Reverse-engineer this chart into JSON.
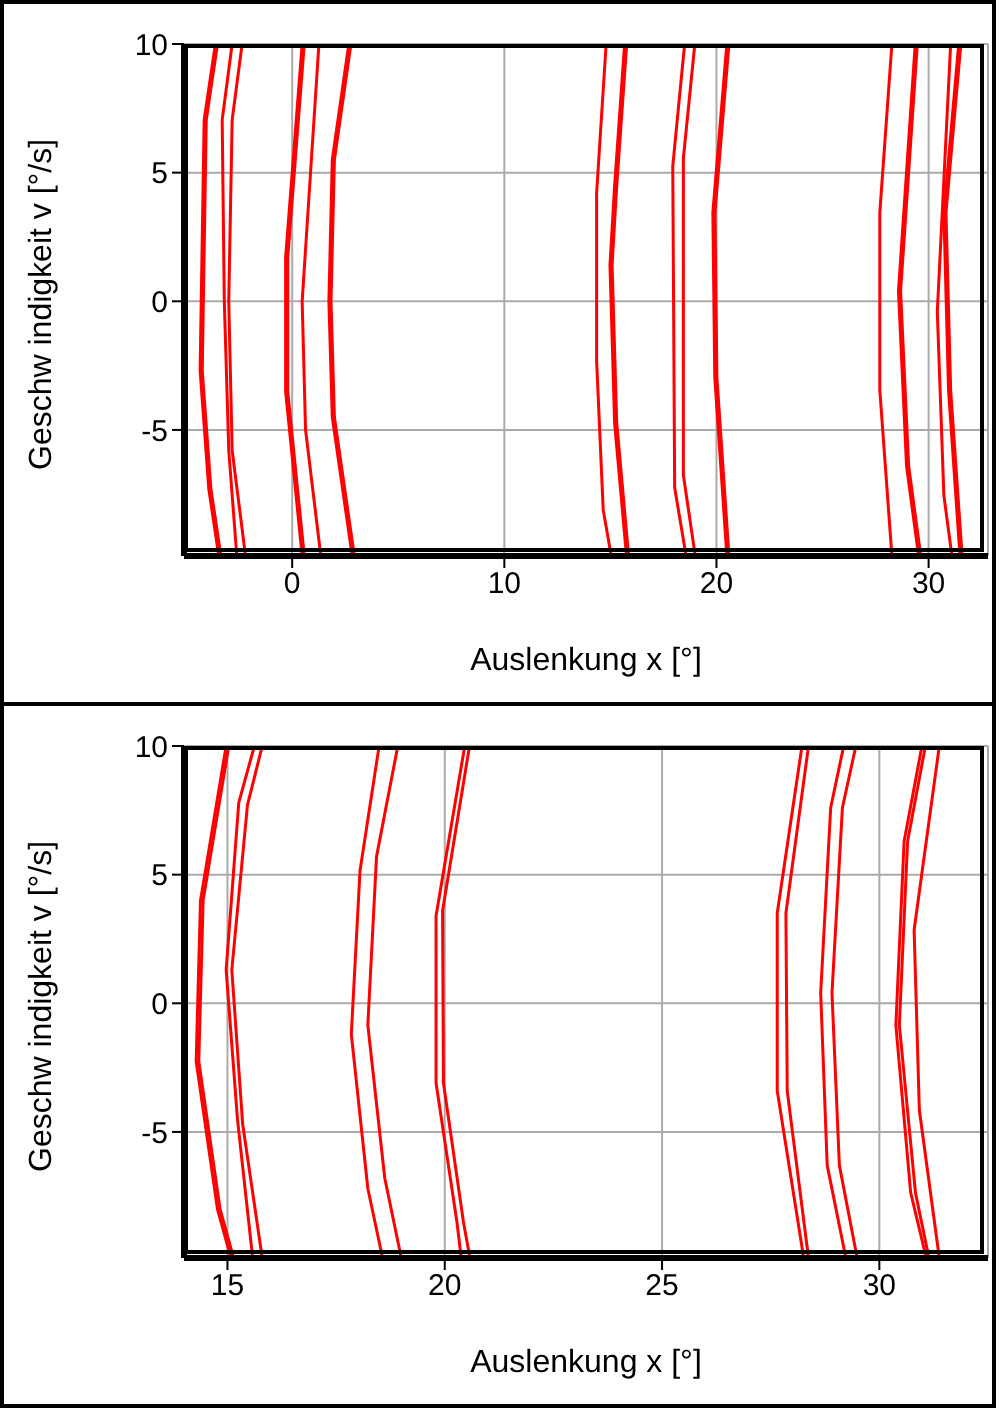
{
  "chart_data": [
    {
      "type": "line",
      "xlabel": "Auslenkung x [°]",
      "ylabel": "Geschw indigkeit v [°/s]",
      "xlim": [
        -5.1,
        32.8
      ],
      "ylim": [
        -9.9,
        10
      ],
      "xticks": [
        0,
        10,
        20,
        30
      ],
      "yticks": [
        -5,
        0,
        5,
        10
      ],
      "grid": true,
      "marker": "none",
      "line_style": "solid",
      "series": [
        {
          "color": "#ff0000",
          "x": [
            -3.62,
            -4.15,
            -4.34,
            -3.93,
            -3.46
          ],
          "values": [
            10,
            7.05,
            -2.7,
            -7.3,
            -9.9
          ]
        },
        {
          "color": "#ff0000",
          "x": [
            -3.52,
            -4.05,
            -4.24,
            -3.83,
            -3.36
          ],
          "values": [
            10,
            7.05,
            -2.7,
            -7.3,
            -9.9
          ]
        },
        {
          "color": "#ff0000",
          "x": [
            -2.83,
            -3.3,
            -3.2,
            -2.99,
            -2.61
          ],
          "values": [
            10,
            7.05,
            0,
            -5.8,
            -9.9
          ]
        },
        {
          "color": "#ff0000",
          "x": [
            -2.36,
            -2.83,
            -2.99,
            -2.83,
            -2.2
          ],
          "values": [
            10,
            7.05,
            0,
            -5.8,
            -9.9
          ]
        },
        {
          "color": "#ff0000",
          "x": [
            0.47,
            -0.31,
            -0.31,
            0.47
          ],
          "values": [
            10,
            1.7,
            -3.5,
            -9.9
          ]
        },
        {
          "color": "#ff0000",
          "x": [
            0.57,
            -0.21,
            -0.21,
            0.57
          ],
          "values": [
            10,
            1.7,
            -3.5,
            -9.9
          ]
        },
        {
          "color": "#ff0000",
          "x": [
            1.26,
            0.47,
            0.63,
            1.35
          ],
          "values": [
            10,
            0,
            -5,
            -9.9
          ]
        },
        {
          "color": "#ff0000",
          "x": [
            2.67,
            1.89,
            1.73,
            1.89,
            2.83
          ],
          "values": [
            10,
            5.5,
            0,
            -4.5,
            -9.9
          ]
        },
        {
          "color": "#ff0000",
          "x": [
            2.77,
            1.99,
            1.83,
            1.99,
            2.93
          ],
          "values": [
            10,
            5.5,
            0,
            -4.5,
            -9.9
          ]
        },
        {
          "color": "#ff0000",
          "x": [
            14.8,
            14.35,
            14.35,
            14.66,
            15.04
          ],
          "values": [
            10,
            4.2,
            -2.3,
            -8.1,
            -9.9
          ]
        },
        {
          "color": "#ff0000",
          "x": [
            15.67,
            15.2,
            14.98,
            15.2,
            15.76
          ],
          "values": [
            10,
            4.5,
            1.4,
            -4.75,
            -9.9
          ]
        },
        {
          "color": "#ff0000",
          "x": [
            15.77,
            15.3,
            15.08,
            15.3,
            15.86
          ],
          "values": [
            10,
            4.5,
            1.4,
            -4.75,
            -9.9
          ]
        },
        {
          "color": "#ff0000",
          "x": [
            18.5,
            17.94,
            18.03,
            18.57
          ],
          "values": [
            10,
            5.25,
            -7.25,
            -9.9
          ]
        },
        {
          "color": "#ff0000",
          "x": [
            18.98,
            18.44,
            18.44,
            19.0
          ],
          "values": [
            10,
            5.55,
            -6.75,
            -9.9
          ]
        },
        {
          "color": "#ff0000",
          "x": [
            20.49,
            19.83,
            19.92,
            20.49
          ],
          "values": [
            10,
            3.45,
            -2.95,
            -9.9
          ]
        },
        {
          "color": "#ff0000",
          "x": [
            20.59,
            19.93,
            20.02,
            20.59
          ],
          "values": [
            10,
            3.45,
            -2.95,
            -9.9
          ]
        },
        {
          "color": "#ff0000",
          "x": [
            28.27,
            27.7,
            27.7,
            28.27
          ],
          "values": [
            10,
            3.45,
            -3.45,
            -9.9
          ]
        },
        {
          "color": "#ff0000",
          "x": [
            29.37,
            28.58,
            28.96,
            29.53
          ],
          "values": [
            10,
            0.4,
            -6.4,
            -9.9
          ]
        },
        {
          "color": "#ff0000",
          "x": [
            29.47,
            28.68,
            29.06,
            29.63
          ],
          "values": [
            10,
            0.4,
            -6.4,
            -9.9
          ]
        },
        {
          "color": "#ff0000",
          "x": [
            31.04,
            30.41,
            30.72,
            31.1
          ],
          "values": [
            10,
            -0.4,
            -7.55,
            -9.9
          ]
        },
        {
          "color": "#ff0000",
          "x": [
            31.42,
            30.72,
            30.94,
            31.48
          ],
          "values": [
            10,
            3.45,
            -3.45,
            -9.9
          ]
        },
        {
          "color": "#ff0000",
          "x": [
            31.52,
            30.82,
            31.04,
            31.58
          ],
          "values": [
            10,
            3.45,
            -3.45,
            -9.9
          ]
        }
      ]
    },
    {
      "type": "line",
      "xlabel": "Auslenkung x [°]",
      "ylabel": "Geschw indigkeit v [°/s]",
      "xlim": [
        14,
        32.5
      ],
      "ylim": [
        -9.9,
        10
      ],
      "xticks": [
        15,
        20,
        25,
        30
      ],
      "yticks": [
        -5,
        0,
        5,
        10
      ],
      "grid": true,
      "marker": "none",
      "line_style": "solid",
      "series": [
        {
          "color": "#ff0000",
          "x": [
            14.97,
            14.38,
            14.28,
            14.77,
            15.08
          ],
          "values": [
            10,
            4,
            -2.25,
            -8,
            -9.9
          ]
        },
        {
          "color": "#ff0000",
          "x": [
            15.03,
            14.44,
            14.34,
            14.83,
            15.14
          ],
          "values": [
            10,
            4,
            -2.25,
            -8,
            -9.9
          ]
        },
        {
          "color": "#ff0000",
          "x": [
            15.62,
            15.26,
            14.97,
            15.23,
            15.58
          ],
          "values": [
            10,
            7.8,
            1.3,
            -4.5,
            -9.9
          ]
        },
        {
          "color": "#ff0000",
          "x": [
            15.8,
            15.46,
            15.1,
            15.35,
            15.8
          ],
          "values": [
            10,
            7.7,
            1.3,
            -4.7,
            -9.9
          ]
        },
        {
          "color": "#ff0000",
          "x": [
            18.49,
            18.05,
            17.85,
            18.23,
            18.57
          ],
          "values": [
            10,
            5.15,
            -1.2,
            -7.2,
            -9.9
          ]
        },
        {
          "color": "#ff0000",
          "x": [
            18.92,
            18.43,
            18.23,
            18.62,
            19.0
          ],
          "values": [
            10,
            5.7,
            -0.85,
            -6.8,
            -9.9
          ]
        },
        {
          "color": "#ff0000",
          "x": [
            20.46,
            19.8,
            19.8,
            20.28,
            20.38
          ],
          "values": [
            10,
            3.4,
            -3.1,
            -8.5,
            -9.9
          ]
        },
        {
          "color": "#ff0000",
          "x": [
            20.57,
            19.95,
            19.97,
            20.43,
            20.58
          ],
          "values": [
            10,
            3.6,
            -3.1,
            -8.5,
            -9.9
          ]
        },
        {
          "color": "#ff0000",
          "x": [
            28.22,
            27.65,
            27.65,
            28.26
          ],
          "values": [
            10,
            3.5,
            -3.4,
            -9.9
          ]
        },
        {
          "color": "#ff0000",
          "x": [
            28.37,
            27.85,
            27.88,
            28.37
          ],
          "values": [
            10,
            3.5,
            -3.4,
            -9.9
          ]
        },
        {
          "color": "#ff0000",
          "x": [
            29.18,
            28.88,
            28.65,
            28.8,
            29.23
          ],
          "values": [
            10,
            7.6,
            0.4,
            -6.3,
            -9.9
          ]
        },
        {
          "color": "#ff0000",
          "x": [
            29.46,
            29.15,
            28.91,
            29.08,
            29.49
          ],
          "values": [
            10,
            7.6,
            0.4,
            -6.3,
            -9.9
          ]
        },
        {
          "color": "#ff0000",
          "x": [
            30.98,
            30.57,
            30.38,
            30.72,
            31.08
          ],
          "values": [
            10,
            6.3,
            -0.85,
            -7.35,
            -9.9
          ]
        },
        {
          "color": "#ff0000",
          "x": [
            31.06,
            30.65,
            30.46,
            30.83,
            31.14
          ],
          "values": [
            10,
            6.3,
            -0.85,
            -7.35,
            -9.9
          ]
        },
        {
          "color": "#ff0000",
          "x": [
            31.38,
            30.8,
            30.92,
            31.38
          ],
          "values": [
            10,
            2.85,
            -4.15,
            -9.9
          ]
        }
      ]
    }
  ]
}
